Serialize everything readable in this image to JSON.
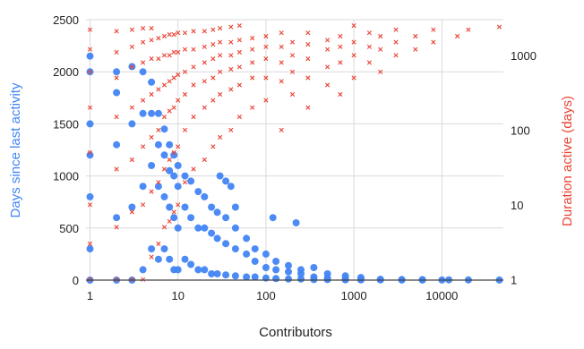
{
  "chart_data": {
    "type": "scatter",
    "title": "",
    "xlabel": "Contributors",
    "ylabel_left": "Days since last activity",
    "ylabel_right": "Duration active (days)",
    "x_scale": "log",
    "xlim": [
      0.9,
      50000
    ],
    "y_left_scale": "linear",
    "ylim_left": [
      0,
      2500
    ],
    "y_right_scale": "log",
    "ylim_right": [
      0.98,
      3000
    ],
    "x_ticks": [
      "1",
      "10",
      "100",
      "1000",
      "10000"
    ],
    "y_left_ticks": [
      "0",
      "500",
      "1000",
      "1500",
      "2000",
      "2500"
    ],
    "y_right_ticks": [
      "1",
      "10",
      "100",
      "1000"
    ],
    "grid": true,
    "legend": "none",
    "colors": {
      "left_series": "#4285f4",
      "right_series": "#ea4335"
    },
    "series": [
      {
        "axis": "left",
        "marker": "circle",
        "color": "#4285f4",
        "points": [
          [
            1,
            0
          ],
          [
            1,
            300
          ],
          [
            1,
            800
          ],
          [
            1,
            1500
          ],
          [
            1,
            2150
          ],
          [
            1,
            2000
          ],
          [
            1,
            1200
          ],
          [
            2,
            0
          ],
          [
            2,
            600
          ],
          [
            2,
            1300
          ],
          [
            2,
            2000
          ],
          [
            2,
            1800
          ],
          [
            3,
            0
          ],
          [
            3,
            700
          ],
          [
            3,
            1500
          ],
          [
            3,
            2050
          ],
          [
            4,
            100
          ],
          [
            4,
            900
          ],
          [
            4,
            1600
          ],
          [
            4,
            2000
          ],
          [
            5,
            300
          ],
          [
            5,
            1100
          ],
          [
            5,
            1600
          ],
          [
            5,
            1900
          ],
          [
            6,
            200
          ],
          [
            6,
            900
          ],
          [
            6,
            1300
          ],
          [
            6,
            1600
          ],
          [
            7,
            300
          ],
          [
            7,
            800
          ],
          [
            7,
            1200
          ],
          [
            7,
            1450
          ],
          [
            8,
            200
          ],
          [
            8,
            700
          ],
          [
            8,
            1050
          ],
          [
            8,
            1300
          ],
          [
            9,
            100
          ],
          [
            9,
            600
          ],
          [
            9,
            1000
          ],
          [
            9,
            1200
          ],
          [
            10,
            100
          ],
          [
            10,
            500
          ],
          [
            10,
            900
          ],
          [
            10,
            1100
          ],
          [
            12,
            200
          ],
          [
            12,
            700
          ],
          [
            12,
            1000
          ],
          [
            14,
            150
          ],
          [
            14,
            600
          ],
          [
            14,
            950
          ],
          [
            17,
            100
          ],
          [
            17,
            500
          ],
          [
            17,
            850
          ],
          [
            20,
            100
          ],
          [
            20,
            500
          ],
          [
            20,
            800
          ],
          [
            24,
            60
          ],
          [
            24,
            450
          ],
          [
            24,
            700
          ],
          [
            28,
            60
          ],
          [
            28,
            400
          ],
          [
            28,
            650
          ],
          [
            30,
            1000
          ],
          [
            35,
            950
          ],
          [
            40,
            900
          ],
          [
            35,
            50
          ],
          [
            35,
            350
          ],
          [
            35,
            600
          ],
          [
            45,
            40
          ],
          [
            45,
            300
          ],
          [
            45,
            500
          ],
          [
            45,
            700
          ],
          [
            60,
            30
          ],
          [
            60,
            250
          ],
          [
            60,
            400
          ],
          [
            75,
            30
          ],
          [
            75,
            180
          ],
          [
            75,
            300
          ],
          [
            100,
            20
          ],
          [
            100,
            120
          ],
          [
            100,
            250
          ],
          [
            120,
            600
          ],
          [
            220,
            550
          ],
          [
            130,
            15
          ],
          [
            130,
            100
          ],
          [
            130,
            180
          ],
          [
            180,
            10
          ],
          [
            180,
            80
          ],
          [
            180,
            140
          ],
          [
            250,
            10
          ],
          [
            250,
            60
          ],
          [
            250,
            100
          ],
          [
            350,
            5
          ],
          [
            350,
            30
          ],
          [
            350,
            120
          ],
          [
            500,
            5
          ],
          [
            500,
            20
          ],
          [
            500,
            60
          ],
          [
            800,
            3
          ],
          [
            800,
            10
          ],
          [
            800,
            40
          ],
          [
            1200,
            2
          ],
          [
            1200,
            10
          ],
          [
            1200,
            25
          ],
          [
            2000,
            2
          ],
          [
            2000,
            8
          ],
          [
            3500,
            1
          ],
          [
            3500,
            5
          ],
          [
            6000,
            1
          ],
          [
            6000,
            4
          ],
          [
            10000,
            1
          ],
          [
            12000,
            3
          ],
          [
            20000,
            2
          ],
          [
            45000,
            1
          ]
        ]
      },
      {
        "axis": "right",
        "marker": "x",
        "color": "#ea4335",
        "points": [
          [
            1,
            1
          ],
          [
            1,
            3
          ],
          [
            1,
            10
          ],
          [
            1,
            50
          ],
          [
            1,
            200
          ],
          [
            1,
            600
          ],
          [
            1,
            1200
          ],
          [
            1,
            2200
          ],
          [
            2,
            1
          ],
          [
            2,
            5
          ],
          [
            2,
            30
          ],
          [
            2,
            150
          ],
          [
            2,
            500
          ],
          [
            2,
            1100
          ],
          [
            2,
            2100
          ],
          [
            3,
            1
          ],
          [
            3,
            8
          ],
          [
            3,
            40
          ],
          [
            3,
            200
          ],
          [
            3,
            700
          ],
          [
            3,
            1300
          ],
          [
            3,
            2200
          ],
          [
            4,
            1
          ],
          [
            4,
            10
          ],
          [
            4,
            60
          ],
          [
            4,
            250
          ],
          [
            4,
            800
          ],
          [
            4,
            1500
          ],
          [
            4,
            2300
          ],
          [
            5,
            2
          ],
          [
            5,
            15
          ],
          [
            5,
            80
          ],
          [
            5,
            300
          ],
          [
            5,
            900
          ],
          [
            5,
            1600
          ],
          [
            5,
            2300
          ],
          [
            6,
            3
          ],
          [
            6,
            20
          ],
          [
            6,
            100
          ],
          [
            6,
            350
          ],
          [
            6,
            900
          ],
          [
            6,
            1700
          ],
          [
            7,
            5
          ],
          [
            7,
            30
          ],
          [
            7,
            150
          ],
          [
            7,
            400
          ],
          [
            7,
            1000
          ],
          [
            7,
            1800
          ],
          [
            8,
            6
          ],
          [
            8,
            40
          ],
          [
            8,
            180
          ],
          [
            8,
            450
          ],
          [
            8,
            1000
          ],
          [
            8,
            1900
          ],
          [
            9,
            8
          ],
          [
            9,
            50
          ],
          [
            9,
            200
          ],
          [
            9,
            500
          ],
          [
            9,
            1100
          ],
          [
            9,
            1900
          ],
          [
            10,
            10
          ],
          [
            10,
            60
          ],
          [
            10,
            250
          ],
          [
            10,
            550
          ],
          [
            10,
            1100
          ],
          [
            10,
            2000
          ],
          [
            12,
            20
          ],
          [
            12,
            100
          ],
          [
            12,
            300
          ],
          [
            12,
            600
          ],
          [
            12,
            1200
          ],
          [
            12,
            2000
          ],
          [
            15,
            30
          ],
          [
            15,
            150
          ],
          [
            15,
            400
          ],
          [
            15,
            700
          ],
          [
            15,
            1200
          ],
          [
            15,
            2100
          ],
          [
            20,
            40
          ],
          [
            20,
            200
          ],
          [
            20,
            450
          ],
          [
            20,
            800
          ],
          [
            20,
            1300
          ],
          [
            20,
            2100
          ],
          [
            25,
            60
          ],
          [
            25,
            250
          ],
          [
            25,
            500
          ],
          [
            25,
            900
          ],
          [
            25,
            1400
          ],
          [
            25,
            2200
          ],
          [
            30,
            80
          ],
          [
            30,
            300
          ],
          [
            30,
            600
          ],
          [
            30,
            1000
          ],
          [
            30,
            1500
          ],
          [
            30,
            2300
          ],
          [
            40,
            100
          ],
          [
            40,
            350
          ],
          [
            40,
            650
          ],
          [
            40,
            1000
          ],
          [
            40,
            1500
          ],
          [
            40,
            2400
          ],
          [
            50,
            150
          ],
          [
            50,
            400
          ],
          [
            50,
            700
          ],
          [
            50,
            1100
          ],
          [
            50,
            1600
          ],
          [
            50,
            2500
          ],
          [
            70,
            200
          ],
          [
            70,
            500
          ],
          [
            70,
            800
          ],
          [
            70,
            1200
          ],
          [
            70,
            1700
          ],
          [
            100,
            250
          ],
          [
            100,
            500
          ],
          [
            100,
            900
          ],
          [
            100,
            1300
          ],
          [
            100,
            1800
          ],
          [
            150,
            100
          ],
          [
            150,
            450
          ],
          [
            150,
            800
          ],
          [
            150,
            1300
          ],
          [
            150,
            2000
          ],
          [
            200,
            300
          ],
          [
            200,
            600
          ],
          [
            200,
            1000
          ],
          [
            200,
            1500
          ],
          [
            300,
            200
          ],
          [
            300,
            500
          ],
          [
            300,
            900
          ],
          [
            300,
            1400
          ],
          [
            300,
            2000
          ],
          [
            500,
            400
          ],
          [
            500,
            700
          ],
          [
            500,
            1200
          ],
          [
            500,
            1600
          ],
          [
            700,
            300
          ],
          [
            700,
            800
          ],
          [
            700,
            1300
          ],
          [
            700,
            1800
          ],
          [
            1000,
            500
          ],
          [
            1000,
            1000
          ],
          [
            1000,
            1500
          ],
          [
            1000,
            2500
          ],
          [
            1500,
            800
          ],
          [
            1500,
            1300
          ],
          [
            1500,
            2000
          ],
          [
            2000,
            600
          ],
          [
            2000,
            1200
          ],
          [
            2000,
            1800
          ],
          [
            3000,
            1000
          ],
          [
            3000,
            1500
          ],
          [
            3000,
            2200
          ],
          [
            5000,
            1200
          ],
          [
            5000,
            1800
          ],
          [
            8000,
            1500
          ],
          [
            8000,
            2200
          ],
          [
            15000,
            1800
          ],
          [
            20000,
            2200
          ],
          [
            45000,
            2400
          ]
        ]
      }
    ]
  }
}
